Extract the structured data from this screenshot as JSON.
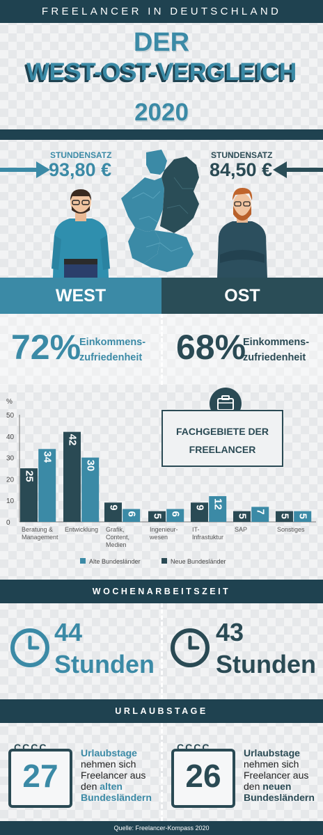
{
  "header": {
    "kicker": "FREELANCER IN DEUTSCHLAND",
    "title_1": "DER",
    "title_2": "WEST-OST-VERGLEICH",
    "year": "2020"
  },
  "west": {
    "rate_label": "STUNDENSATZ",
    "rate_value": "93,80 €",
    "region": "WEST",
    "satisfaction_pct": "72%",
    "satisfaction_label_1": "Einkommens-",
    "satisfaction_label_2": "zufriedenheit",
    "hours_num": "44",
    "hours_unit": "Stunden",
    "vacation_days": "27",
    "vac_1": "Urlaubstage",
    "vac_2": "nehmen sich",
    "vac_3": "Freelancer aus",
    "vac_4a": "den ",
    "vac_4b": "alten",
    "vac_5": "Bundesländern"
  },
  "ost": {
    "rate_label": "STUNDENSATZ",
    "rate_value": "84,50 €",
    "region": "OST",
    "satisfaction_pct": "68%",
    "satisfaction_label_1": "Einkommens-",
    "satisfaction_label_2": "zufriedenheit",
    "hours_num": "43",
    "hours_unit": "Stunden",
    "vacation_days": "26",
    "vac_1": "Urlaubstage",
    "vac_2": "nehmen sich",
    "vac_3": "Freelancer aus",
    "vac_4a": "den ",
    "vac_4b": "neuen",
    "vac_5": "Bundesländern"
  },
  "chart_box": {
    "line_1": "FACHGEBIETE DER",
    "line_2": "FREELANCER"
  },
  "sections": {
    "work": "WOCHENARBEITSZEIT",
    "vacation": "URLAUBSTAGE"
  },
  "calendar_rings": "CCCC",
  "source": "Quelle: Freelancer-Kompass 2020",
  "colors": {
    "west": "#3b8aa6",
    "ost": "#2a4d57",
    "dark": "#1f4250"
  },
  "chart_data": {
    "type": "bar",
    "ylabel": "%",
    "ylim": [
      0,
      50
    ],
    "yticks": [
      0,
      10,
      20,
      30,
      40,
      50
    ],
    "categories": [
      [
        "Beratung &",
        "Management"
      ],
      [
        "Entwicklung"
      ],
      [
        "Grafik,",
        "Content,",
        "Medien"
      ],
      [
        "Ingenieur-",
        "wesen"
      ],
      [
        "IT-",
        "Infrastuktur"
      ],
      [
        "SAP"
      ],
      [
        "Sonstiges"
      ]
    ],
    "series": [
      {
        "name": "Neue Bundesländer",
        "color": "#2a4a54",
        "values": [
          25,
          42,
          9,
          5,
          9,
          5,
          5
        ]
      },
      {
        "name": "Alte Bundesländer",
        "color": "#3b8aa6",
        "values": [
          34,
          30,
          6,
          6,
          12,
          7,
          5
        ]
      }
    ],
    "legend": "bottom",
    "grid": false
  }
}
